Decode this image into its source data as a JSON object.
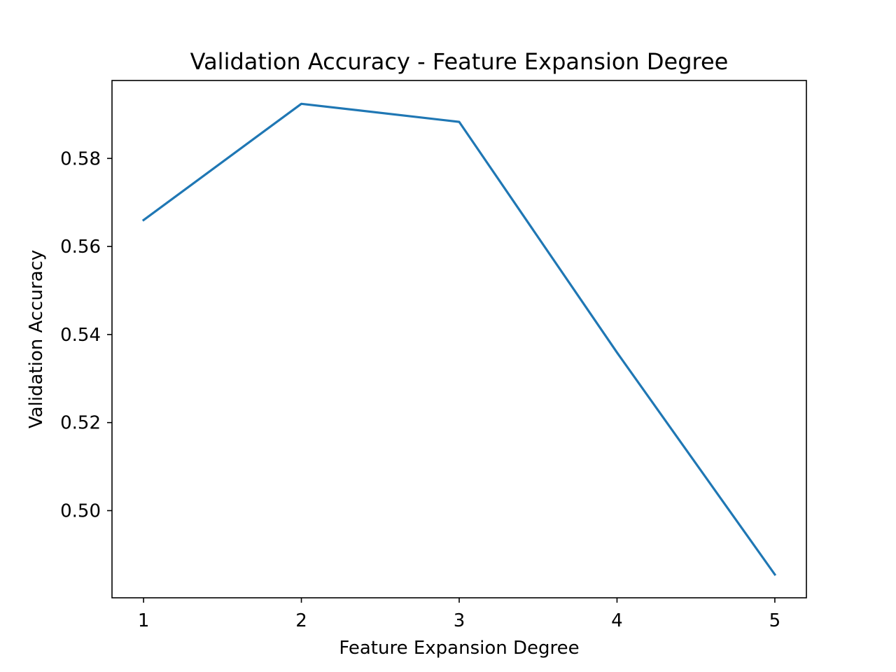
{
  "chart_data": {
    "type": "line",
    "title": "Validation Accuracy - Feature Expansion Degree",
    "xlabel": "Feature Expansion Degree",
    "ylabel": "Validation Accuracy",
    "x": [
      1,
      2,
      3,
      4,
      5
    ],
    "series": [
      {
        "values": [
          0.566,
          0.5924,
          0.5883,
          0.5359,
          0.4855
        ],
        "color": "#1f77b4"
      }
    ],
    "xticks": [
      1,
      2,
      3,
      4,
      5
    ],
    "xtick_labels": [
      "1",
      "2",
      "3",
      "4",
      "5"
    ],
    "yticks": [
      0.5,
      0.52,
      0.54,
      0.56,
      0.58
    ],
    "ytick_labels": [
      "0.50",
      "0.52",
      "0.54",
      "0.56",
      "0.58"
    ],
    "xlim": [
      0.8,
      5.2
    ],
    "ylim": [
      0.4802,
      0.5977
    ],
    "grid": false,
    "legend": false
  }
}
